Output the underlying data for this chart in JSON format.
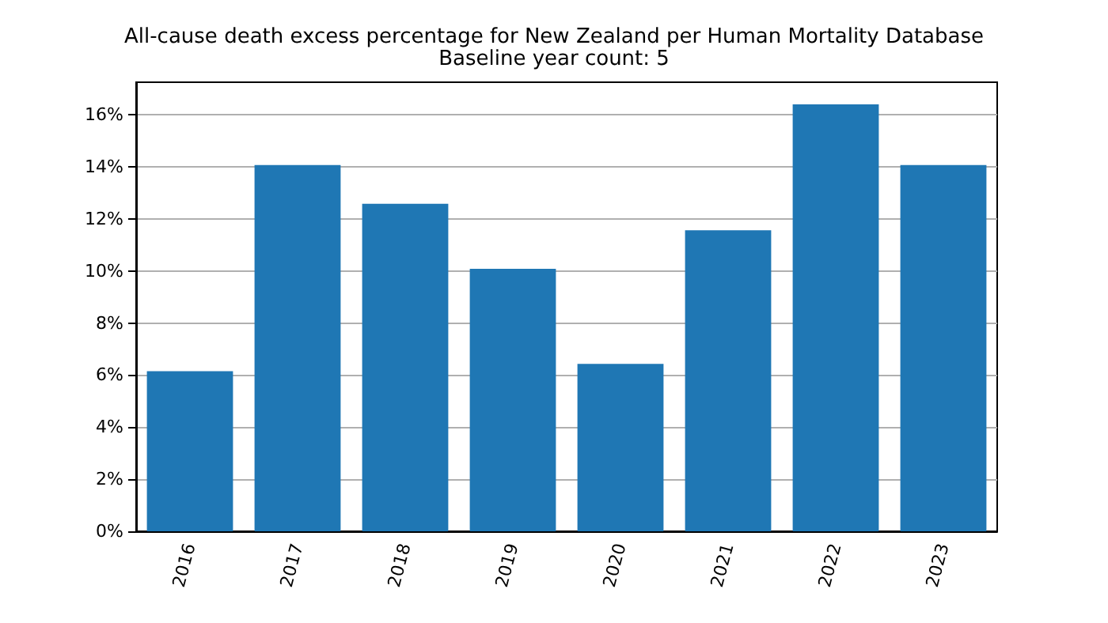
{
  "chart_data": {
    "type": "bar",
    "title": "All-cause death excess percentage for New Zealand per Human Mortality Database",
    "subtitle": "Baseline year count: 5",
    "categories": [
      "2016",
      "2017",
      "2018",
      "2019",
      "2020",
      "2021",
      "2022",
      "2023"
    ],
    "values": [
      6.15,
      14.07,
      12.58,
      10.08,
      6.43,
      11.56,
      16.4,
      14.07
    ],
    "color": "#1f77b4",
    "ylim": [
      0,
      17.25
    ],
    "yticks": [
      {
        "value": 0,
        "label": "0%"
      },
      {
        "value": 2,
        "label": "2%"
      },
      {
        "value": 4,
        "label": "4%"
      },
      {
        "value": 6,
        "label": "6%"
      },
      {
        "value": 8,
        "label": "8%"
      },
      {
        "value": 10,
        "label": "10%"
      },
      {
        "value": 12,
        "label": "12%"
      },
      {
        "value": 14,
        "label": "14%"
      },
      {
        "value": 16,
        "label": "16%"
      }
    ],
    "grid": "y"
  }
}
